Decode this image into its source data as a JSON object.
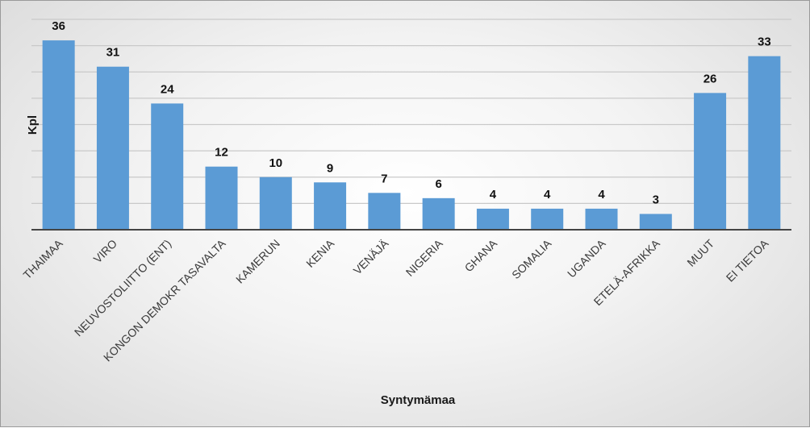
{
  "chart_data": {
    "type": "bar",
    "categories": [
      "THAIMAA",
      "VIRO",
      "NEUVOSTOLIITTO (ENT)",
      "KONGON DEMOKR TASAVALTA",
      "KAMERUN",
      "KENIA",
      "VENÄJÄ",
      "NIGERIA",
      "GHANA",
      "SOMALIA",
      "UGANDA",
      "ETELÄ-AFRIKKA",
      "MUUT",
      "EI TIETOA"
    ],
    "values": [
      36,
      31,
      24,
      12,
      10,
      9,
      7,
      6,
      4,
      4,
      4,
      3,
      26,
      33
    ],
    "xlabel": "Syntymämaa",
    "ylabel": "Kpl",
    "ylim": [
      0,
      40
    ],
    "grid": true,
    "data_labels": true,
    "bar_color": "#5b9bd5"
  }
}
